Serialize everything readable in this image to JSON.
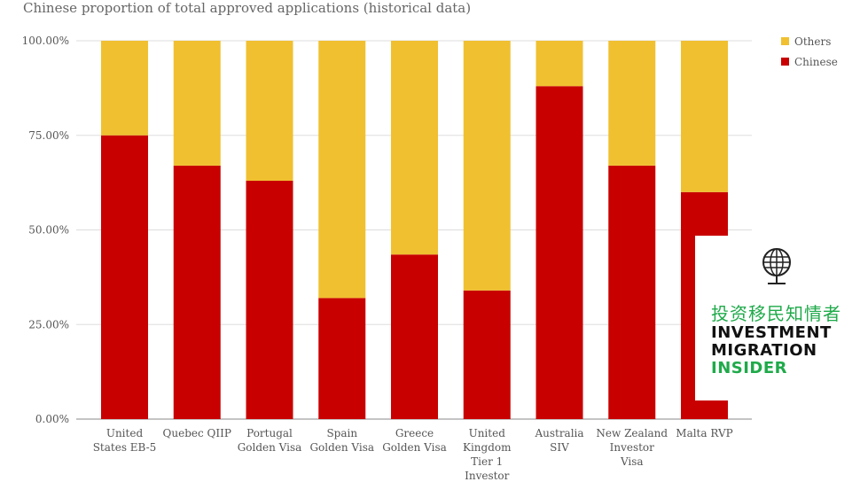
{
  "chart_data": {
    "type": "bar",
    "stacked": true,
    "title": "Chinese proportion of total approved applications (historical data)",
    "categories": [
      [
        "United",
        "States EB-5"
      ],
      [
        "Quebec QIIP"
      ],
      [
        "Portugal",
        "Golden Visa"
      ],
      [
        "Spain",
        "Golden Visa"
      ],
      [
        "Greece",
        "Golden Visa"
      ],
      [
        "United",
        "Kingdom",
        "Tier 1",
        "Investor"
      ],
      [
        "Australia",
        "SIV"
      ],
      [
        "New Zealand",
        "Investor",
        "Visa"
      ],
      [
        "Malta RVP"
      ]
    ],
    "series": [
      {
        "name": "Chinese",
        "color": "#c80000",
        "values": [
          75,
          67,
          63,
          32,
          43.5,
          34,
          88,
          67,
          60
        ]
      },
      {
        "name": "Others",
        "color": "#f0c030",
        "values": [
          25,
          33,
          37,
          68,
          56.5,
          66,
          12,
          33,
          40
        ]
      }
    ],
    "ylim": [
      0,
      100
    ],
    "yticks": [
      "0.00%",
      "25.00%",
      "50.00%",
      "75.00%",
      "100.00%"
    ],
    "ytick_values": [
      0,
      25,
      50,
      75,
      100
    ],
    "grid": true,
    "legend_position": "top-right",
    "legend": [
      {
        "name": "Others",
        "color": "#f0c030"
      },
      {
        "name": "Chinese",
        "color": "#c80000"
      }
    ]
  },
  "logo": {
    "chinese_text": "投资移民知情者",
    "line1": "INVESTMENT",
    "line2": "MIGRATION",
    "line3": "INSIDER",
    "icon": "globe-icon"
  }
}
